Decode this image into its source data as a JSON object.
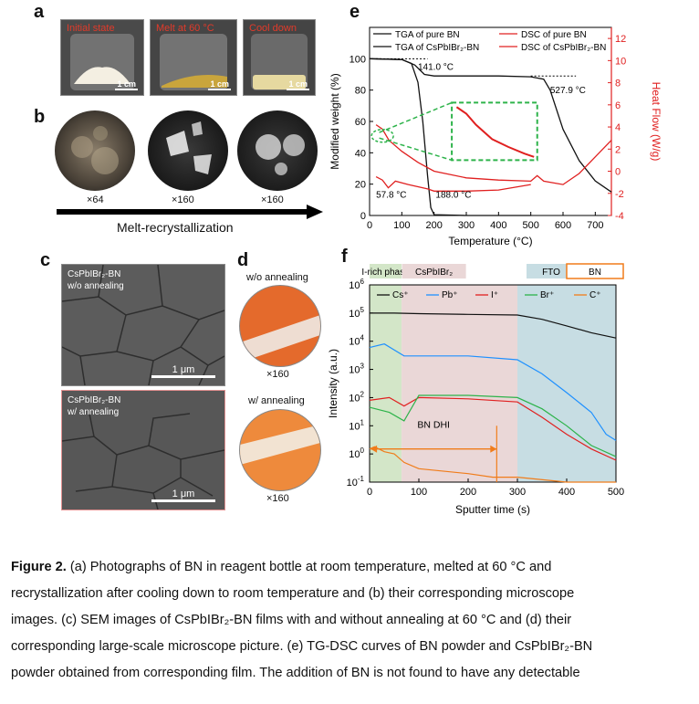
{
  "panel_labels": {
    "a": "a",
    "b": "b",
    "c": "c",
    "d": "d",
    "e": "e",
    "f": "f"
  },
  "panel_a": {
    "photos": [
      {
        "title": "Initial state",
        "scale": "1 cm"
      },
      {
        "title": "Melt at 60 °C",
        "scale": "1 cm"
      },
      {
        "title": "Cool down",
        "scale": "1 cm"
      }
    ]
  },
  "panel_b": {
    "magnifications": [
      "×64",
      "×160",
      "×160"
    ],
    "arrow_label": "Melt-recrystallization"
  },
  "panel_c": {
    "top_title_line1": "CsPbIBr₂-BN",
    "top_title_line2": "w/o annealing",
    "bottom_title_line1": "CsPbIBr₂-BN",
    "bottom_title_line2": "w/ annealing",
    "scale": "1 μm"
  },
  "panel_d": {
    "top_label": "w/o annealing",
    "top_mag": "×160",
    "bottom_label": "w/ annealing",
    "bottom_mag": "×160"
  },
  "colors": {
    "red": "#e02020",
    "black": "#111111",
    "green_dash": "#2db34a",
    "blue": "#1e90ff",
    "orange": "#f07c1a"
  },
  "chart_data": [
    {
      "type": "line",
      "xlabel": "Temperature (°C)",
      "ylabel_left": "Modified weight (%)",
      "ylabel_right": "Heat Flow (W/g)",
      "xlim": [
        0,
        750
      ],
      "ylim_left": [
        0,
        120
      ],
      "ylim_right": [
        -4,
        13
      ],
      "x_ticks": [
        "0",
        "100",
        "200",
        "300",
        "400",
        "500",
        "600",
        "700"
      ],
      "y_left_ticks": [
        "0",
        "20",
        "40",
        "60",
        "80",
        "100"
      ],
      "y_right_ticks": [
        "-4",
        "-2",
        "0",
        "2",
        "4",
        "6",
        "8",
        "10",
        "12"
      ],
      "legend": [
        "TGA of pure BN",
        "TGA of CsPbIBr₂-BN",
        "DSC of pure BN",
        "DSC of CsPbIBr₂-BN"
      ],
      "annotations": [
        "141.0 °C",
        "527.9 °C",
        "57.8 °C",
        "188.0 °C"
      ],
      "series": [
        {
          "name": "TGA of pure BN",
          "axis": "left",
          "color": "#111111",
          "x": [
            0,
            100,
            130,
            150,
            165,
            180,
            190,
            200,
            300,
            500
          ],
          "y": [
            100,
            99.5,
            97,
            85,
            60,
            25,
            5,
            0.5,
            0,
            0
          ]
        },
        {
          "name": "TGA of CsPbIBr₂-BN",
          "axis": "left",
          "color": "#111111",
          "x": [
            0,
            100,
            140,
            170,
            200,
            300,
            400,
            500,
            540,
            560,
            600,
            650,
            700,
            750
          ],
          "y": [
            100,
            99.5,
            96,
            90,
            89,
            89,
            89,
            88.5,
            87,
            80,
            55,
            35,
            22,
            15
          ]
        },
        {
          "name": "DSC of pure BN",
          "axis": "right",
          "color": "#e02020",
          "x": [
            20,
            40,
            58,
            80,
            120,
            150,
            180,
            200,
            300,
            400,
            500
          ],
          "y": [
            -0.5,
            -0.8,
            -1.5,
            -0.9,
            -1.2,
            -1.4,
            -1.6,
            -1.8,
            -1.8,
            -1.7,
            -1.2
          ]
        },
        {
          "name": "DSC of CsPbIBr₂-BN",
          "axis": "right",
          "color": "#e02020",
          "x": [
            20,
            40,
            60,
            100,
            150,
            200,
            300,
            400,
            500,
            520,
            540,
            600,
            650,
            700,
            750
          ],
          "y": [
            4.2,
            3.8,
            2.8,
            1.8,
            0.8,
            0,
            -0.6,
            -0.8,
            -0.9,
            -0.4,
            -0.9,
            -1.2,
            -0.2,
            1.3,
            2.8
          ]
        }
      ]
    },
    {
      "type": "line",
      "xlabel": "Sputter time (s)",
      "ylabel": "Intensity (a.u.)",
      "xlim": [
        0,
        500
      ],
      "ylim": [
        0.1,
        1000000
      ],
      "y_scale": "log",
      "x_ticks": [
        "0",
        "100",
        "200",
        "300",
        "400",
        "500"
      ],
      "y_ticks_base": "10",
      "y_ticks_exp": [
        "-1",
        "0",
        "1",
        "2",
        "3",
        "4",
        "5",
        "6"
      ],
      "regions": [
        {
          "label": "I-rich phase",
          "x": [
            0,
            65
          ],
          "color": "#d3e6c8"
        },
        {
          "label": "CsPbIBr₂",
          "x": [
            65,
            300
          ],
          "color": "#ead7d7"
        },
        {
          "label": "FTO",
          "x": [
            300,
            500
          ],
          "color": "#c7dde3"
        },
        {
          "label": "BN",
          "x": [
            420,
            500
          ],
          "color": "#ffffff"
        }
      ],
      "legend": [
        "Cs⁺",
        "Pb⁺",
        "I⁺",
        "Br⁺",
        "C⁺"
      ],
      "annotation": "BN DHI",
      "series": [
        {
          "name": "Cs⁺",
          "color": "#111111",
          "x": [
            0,
            50,
            100,
            200,
            300,
            350,
            400,
            450,
            500
          ],
          "y": [
            100000,
            100000,
            95000,
            90000,
            85000,
            60000,
            35000,
            20000,
            13000
          ]
        },
        {
          "name": "Pb⁺",
          "color": "#1e90ff",
          "x": [
            0,
            30,
            70,
            100,
            200,
            300,
            350,
            400,
            450,
            480,
            500
          ],
          "y": [
            6000,
            8000,
            3000,
            3000,
            3000,
            2200,
            700,
            150,
            30,
            5,
            3
          ]
        },
        {
          "name": "I⁺",
          "color": "#e02020",
          "x": [
            0,
            40,
            70,
            100,
            200,
            300,
            350,
            400,
            450,
            500
          ],
          "y": [
            80,
            100,
            50,
            100,
            90,
            70,
            20,
            5,
            1.5,
            0.6
          ]
        },
        {
          "name": "Br⁺",
          "color": "#2db34a",
          "x": [
            0,
            40,
            70,
            100,
            200,
            300,
            350,
            400,
            450,
            500
          ],
          "y": [
            45,
            30,
            15,
            120,
            120,
            100,
            40,
            10,
            2,
            0.8
          ]
        },
        {
          "name": "C⁺",
          "color": "#f07c1a",
          "x": [
            0,
            10,
            30,
            50,
            70,
            100,
            200,
            250,
            300,
            400,
            500
          ],
          "y": [
            1.5,
            1.8,
            1.2,
            1.0,
            0.5,
            0.3,
            0.2,
            0.15,
            0.15,
            0.1,
            0.1
          ]
        }
      ]
    }
  ],
  "caption": {
    "bold": "Figure 2.",
    "line1": " (a) Photographs of BN in reagent bottle at room temperature, melted at 60 °C and",
    "line2": "recrystallization after cooling down to room temperature and (b) their corresponding microscope",
    "line3": "images. (c) SEM images of CsPbIBr₂-BN films with and without annealing at 60 °C and (d) their",
    "line4": "corresponding large-scale microscope picture. (e) TG-DSC curves of BN powder and CsPbIBr₂-BN",
    "line5": "powder obtained from corresponding film. The addition of BN is not found to have any detectable"
  }
}
